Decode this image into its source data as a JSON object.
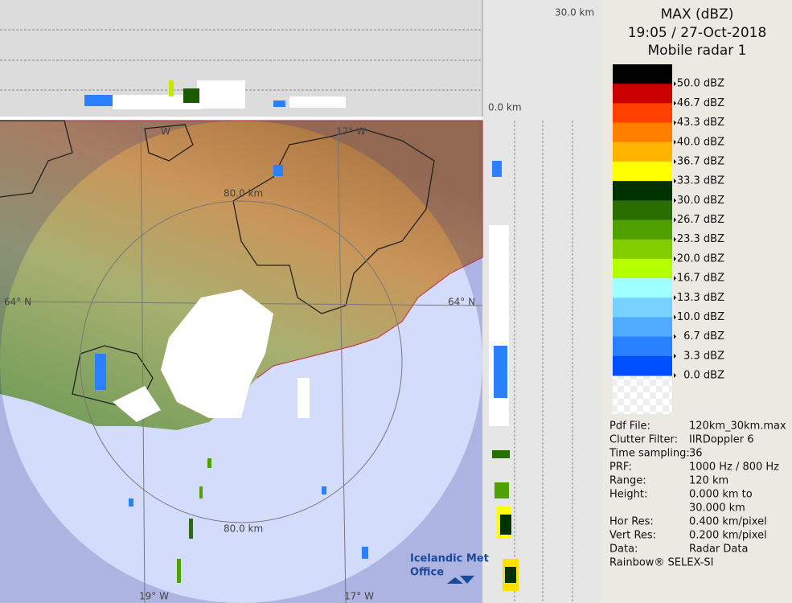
{
  "map": {
    "top_scale_label": "30.0 km",
    "zero_label": "0.0 km",
    "range_labels": [
      "80.0 km",
      "80.0 km"
    ],
    "lat_labels": [
      "64° N",
      "64° N"
    ],
    "lon_labels": [
      "W",
      "17° W",
      "19° W",
      "17° W"
    ],
    "logo": [
      "Icelandic Met",
      "Office"
    ]
  },
  "legend": {
    "title": "MAX (dBZ)",
    "time": "19:05 / 27-Oct-2018",
    "radar": "Mobile radar 1",
    "levels": [
      {
        "label": "50.0 dBZ",
        "color": "#000000"
      },
      {
        "label": "46.7 dBZ",
        "color": "#c80000"
      },
      {
        "label": "43.3 dBZ",
        "color": "#ff4000"
      },
      {
        "label": "40.0 dBZ",
        "color": "#ff8000"
      },
      {
        "label": "36.7 dBZ",
        "color": "#ffb400"
      },
      {
        "label": "33.3 dBZ",
        "color": "#ffff00"
      },
      {
        "label": "30.0 dBZ",
        "color": "#003200"
      },
      {
        "label": "26.7 dBZ",
        "color": "#286e00"
      },
      {
        "label": "23.3 dBZ",
        "color": "#50a000"
      },
      {
        "label": "20.0 dBZ",
        "color": "#82cd00"
      },
      {
        "label": "16.7 dBZ",
        "color": "#b4ff00"
      },
      {
        "label": "13.3 dBZ",
        "color": "#a0ffff"
      },
      {
        "label": "10.0 dBZ",
        "color": "#78d2ff"
      },
      {
        "label": "6.7 dBZ",
        "color": "#50aaff"
      },
      {
        "label": "3.3 dBZ",
        "color": "#2882ff"
      },
      {
        "label": "0.0 dBZ",
        "color": "#0050ff"
      }
    ]
  },
  "info": {
    "rows": [
      {
        "label": "Pdf File:",
        "lines": [
          "120km_30km.max"
        ]
      },
      {
        "label": "Clutter Filter:",
        "lines": [
          "IIRDoppler 6"
        ]
      },
      {
        "label": "Time sampling:",
        "lines": [
          "36"
        ]
      },
      {
        "label": "PRF:",
        "lines": [
          "1000 Hz / 800 Hz"
        ]
      },
      {
        "label": "Range:",
        "lines": [
          "120 km"
        ]
      },
      {
        "label": "Height:",
        "lines": [
          "0.000 km to",
          "30.000 km"
        ]
      },
      {
        "label": "Hor Res:",
        "lines": [
          "0.400 km/pixel"
        ]
      },
      {
        "label": "Vert Res:",
        "lines": [
          "0.200 km/pixel"
        ]
      },
      {
        "label": "Data:",
        "lines": [
          "Radar Data"
        ]
      }
    ],
    "footer": "Rainbow® SELEX-SI"
  }
}
